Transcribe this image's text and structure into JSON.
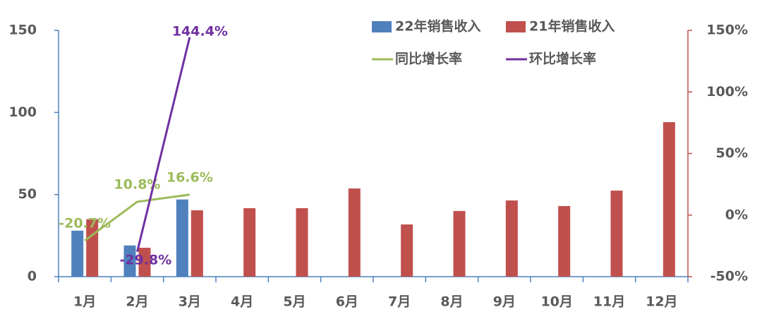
{
  "chart_data": {
    "type": "bar",
    "categories": [
      "1月",
      "2月",
      "3月",
      "4月",
      "5月",
      "6月",
      "7月",
      "8月",
      "9月",
      "10月",
      "11月",
      "12月"
    ],
    "series": [
      {
        "name": "22年销售收入",
        "color": "#4f81bd",
        "type": "bar",
        "values": [
          28,
          19,
          47,
          null,
          null,
          null,
          null,
          null,
          null,
          null,
          null,
          null
        ]
      },
      {
        "name": "21年销售收入",
        "color": "#c0504d",
        "type": "bar",
        "values": [
          35,
          17.6,
          40.4,
          41.7,
          41.7,
          53.7,
          31.8,
          40,
          46.4,
          43,
          52.4,
          94.1
        ]
      },
      {
        "name": "同比增长率",
        "color": "#9bbb59",
        "type": "line",
        "axis": "y2",
        "values": [
          -20.7,
          10.8,
          16.6,
          null,
          null,
          null,
          null,
          null,
          null,
          null,
          null,
          null
        ],
        "value_labels": [
          "-20.7%",
          "10.8%",
          "16.6%",
          null,
          null,
          null,
          null,
          null,
          null,
          null,
          null,
          null
        ]
      },
      {
        "name": "环比增长率",
        "color": "#7030a0",
        "type": "line",
        "axis": "y2",
        "values": [
          null,
          -29.8,
          144.4,
          null,
          null,
          null,
          null,
          null,
          null,
          null,
          null,
          null
        ],
        "value_labels": [
          null,
          "-29.8%",
          "144.4%",
          null,
          null,
          null,
          null,
          null,
          null,
          null,
          null,
          null
        ]
      }
    ],
    "ylim": [
      0,
      150
    ],
    "yticks": [
      0,
      50,
      100,
      150
    ],
    "y2lim": [
      -50,
      150
    ],
    "y2ticks": [
      {
        "value": -50,
        "label": "-50%"
      },
      {
        "value": 0,
        "label": "0%"
      },
      {
        "value": 50,
        "label": "50%"
      },
      {
        "value": 100,
        "label": "100%"
      },
      {
        "value": 150,
        "label": "150%"
      }
    ],
    "grid": false
  }
}
